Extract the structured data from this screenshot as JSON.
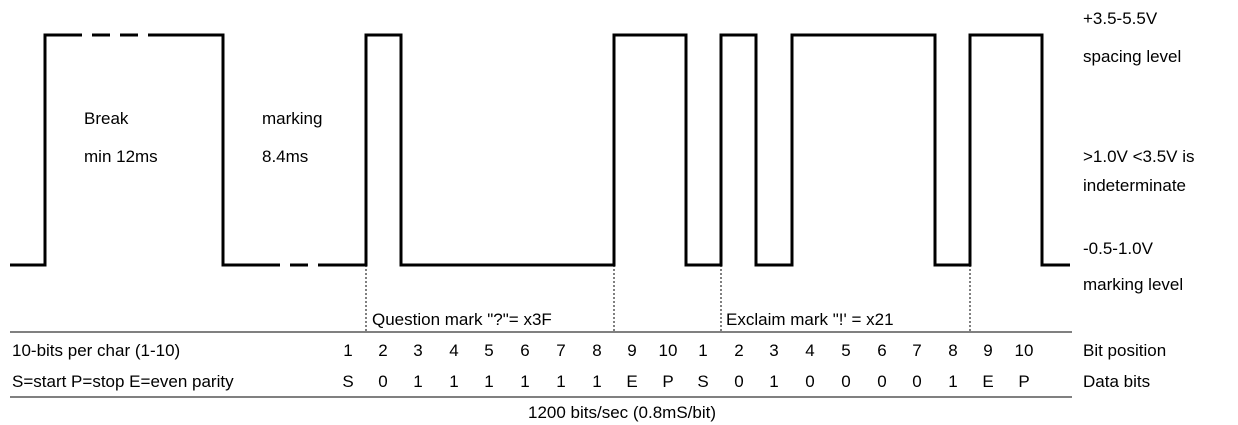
{
  "annotations": {
    "break_title": "Break",
    "break_time": "min 12ms",
    "marking_title": "marking",
    "marking_time": "8.4ms"
  },
  "levels": {
    "spacing_voltage": "+3.5-5.5V",
    "spacing_label": "spacing level",
    "indeterminate_voltage": ">1.0V <3.5V is",
    "indeterminate_label": "indeterminate",
    "marking_voltage": "-0.5-1.0V",
    "marking_label": "marking level"
  },
  "chars": {
    "question": "Question mark \"?\"=  x3F",
    "exclaim": "Exclaim mark \"!' = x21"
  },
  "table": {
    "row1_label": "10-bits per char (1-10)",
    "row1_right": "Bit position",
    "row2_label": "S=start P=stop E=even parity",
    "row2_right": "Data bits",
    "bit_positions": [
      "1",
      "2",
      "3",
      "4",
      "5",
      "6",
      "7",
      "8",
      "9",
      "10",
      "1",
      "2",
      "3",
      "4",
      "5",
      "6",
      "7",
      "8",
      "9",
      "10"
    ],
    "data_bits": [
      "S",
      "0",
      "1",
      "1",
      "1",
      "1",
      "1",
      "1",
      "E",
      "P",
      "S",
      "0",
      "1",
      "0",
      "0",
      "0",
      "0",
      "1",
      "E",
      "P"
    ],
    "footer": "1200 bits/sec (0.8mS/bit)"
  }
}
